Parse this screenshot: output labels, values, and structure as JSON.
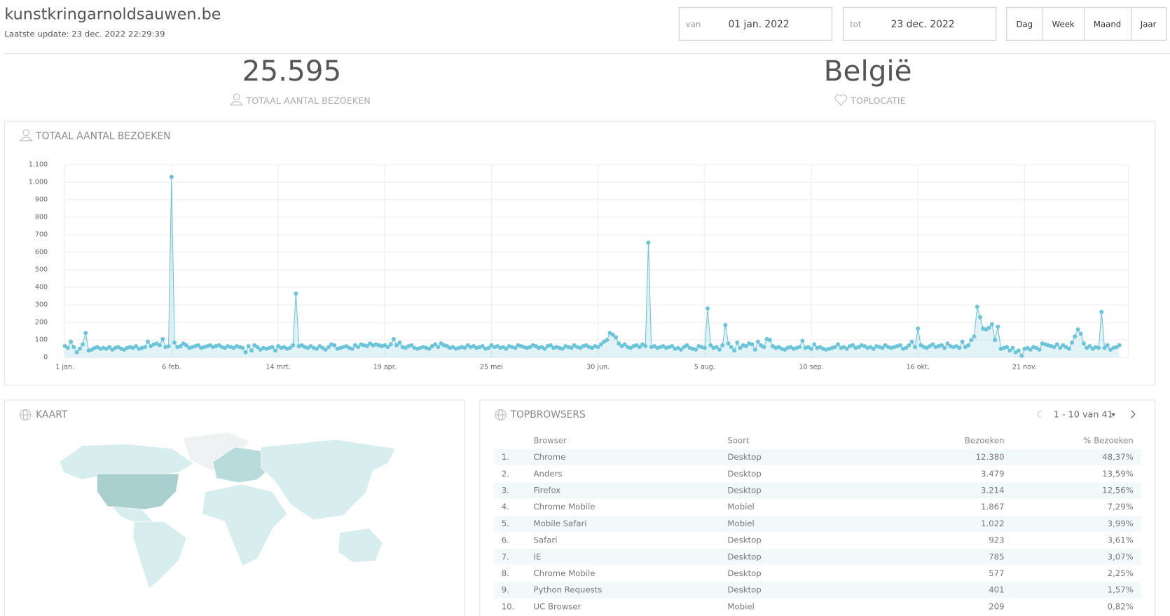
{
  "header": {
    "site": "kunstkringarnoldsauwen.be",
    "updated": "Laatste update: 23 dec. 2022 22:29:39",
    "from_label": "van",
    "from": "01 jan. 2022",
    "to_label": "tot",
    "to": "23 dec. 2022",
    "buttons": [
      "Dag",
      "Week",
      "Maand",
      "Jaar"
    ]
  },
  "stats": [
    {
      "value": "25.595",
      "label": "TOTAAL AANTAL BEZOEKEN"
    },
    {
      "value": "België",
      "label": "TOPLOCATIE"
    }
  ],
  "chart_data": {
    "type": "line",
    "title": "TOTAAL AANTAL BEZOEKEN",
    "color": "#6cc4d8",
    "grid": true,
    "xlim": [
      0,
      359
    ],
    "xticks": [
      {
        "value": 0,
        "label": "1 jan."
      },
      {
        "value": 36,
        "label": "6 feb."
      },
      {
        "value": 72,
        "label": "14 mrt."
      },
      {
        "value": 108,
        "label": "19 apr."
      },
      {
        "value": 144,
        "label": "25 mei"
      },
      {
        "value": 180,
        "label": "30 jun."
      },
      {
        "value": 216,
        "label": "5 aug."
      },
      {
        "value": 252,
        "label": "10 sep."
      },
      {
        "value": 288,
        "label": "16 okt."
      },
      {
        "value": 324,
        "label": "21 nov."
      }
    ],
    "ylim": [
      0,
      1100
    ],
    "yticks": [
      0,
      100,
      200,
      300,
      400,
      500,
      600,
      700,
      800,
      900,
      {
        "value": 1000,
        "label": "1.000"
      },
      {
        "value": 1100,
        "label": "1.100"
      }
    ],
    "values": [
      65,
      55,
      90,
      60,
      30,
      50,
      75,
      140,
      40,
      45,
      55,
      60,
      50,
      55,
      50,
      60,
      45,
      55,
      60,
      50,
      45,
      55,
      60,
      55,
      65,
      50,
      55,
      60,
      90,
      65,
      75,
      80,
      70,
      105,
      60,
      65,
      1030,
      85,
      60,
      65,
      80,
      70,
      55,
      60,
      65,
      70,
      55,
      60,
      65,
      70,
      60,
      65,
      70,
      60,
      55,
      65,
      60,
      55,
      65,
      60,
      55,
      30,
      65,
      40,
      70,
      60,
      45,
      55,
      50,
      55,
      60,
      40,
      65,
      55,
      60,
      50,
      55,
      70,
      365,
      65,
      70,
      60,
      55,
      65,
      55,
      50,
      65,
      55,
      45,
      60,
      75,
      70,
      50,
      55,
      60,
      65,
      55,
      50,
      70,
      60,
      75,
      70,
      65,
      80,
      70,
      75,
      70,
      65,
      70,
      60,
      75,
      105,
      70,
      85,
      60,
      55,
      65,
      70,
      55,
      50,
      55,
      60,
      55,
      50,
      65,
      75,
      60,
      80,
      70,
      65,
      55,
      60,
      50,
      55,
      60,
      55,
      70,
      60,
      65,
      55,
      60,
      65,
      50,
      55,
      70,
      60,
      65,
      55,
      60,
      50,
      65,
      60,
      55,
      70,
      65,
      60,
      55,
      60,
      70,
      65,
      55,
      60,
      50,
      65,
      70,
      55,
      60,
      55,
      50,
      65,
      60,
      55,
      70,
      60,
      55,
      65,
      70,
      60,
      55,
      65,
      60,
      75,
      90,
      100,
      140,
      130,
      115,
      80,
      65,
      75,
      60,
      55,
      65,
      70,
      60,
      75,
      65,
      655,
      60,
      65,
      55,
      60,
      65,
      55,
      60,
      65,
      50,
      55,
      45,
      60,
      70,
      55,
      50,
      45,
      65,
      60,
      55,
      280,
      70,
      55,
      60,
      45,
      70,
      185,
      80,
      60,
      40,
      85,
      55,
      70,
      65,
      80,
      75,
      45,
      90,
      70,
      60,
      105,
      100,
      65,
      55,
      60,
      50,
      45,
      55,
      60,
      50,
      55,
      60,
      95,
      55,
      60,
      50,
      75,
      55,
      60,
      50,
      45,
      50,
      55,
      60,
      75,
      55,
      60,
      50,
      65,
      70,
      55,
      60,
      70,
      65,
      55,
      60,
      50,
      65,
      60,
      55,
      70,
      60,
      55,
      60,
      65,
      70,
      50,
      55,
      70,
      90,
      60,
      165,
      70,
      60,
      55,
      65,
      75,
      60,
      65,
      70,
      55,
      80,
      65,
      60,
      65,
      55,
      90,
      60,
      70,
      100,
      120,
      290,
      230,
      165,
      160,
      170,
      190,
      100,
      175,
      50,
      55,
      60,
      40,
      55,
      30,
      40,
      10,
      50,
      55,
      45,
      60,
      55,
      45,
      80,
      75,
      70,
      65,
      60,
      75,
      55,
      70,
      60,
      50,
      85,
      120,
      160,
      135,
      80,
      55,
      65,
      50,
      60,
      55,
      260,
      55,
      70,
      45,
      55,
      60,
      70
    ]
  },
  "map": {
    "title": "KAART"
  },
  "table": {
    "title": "TOPBROWSERS",
    "pager": "1 - 10 van 41",
    "columns": [
      "Browser",
      "Soort",
      "Bezoeken",
      "% Bezoeken"
    ],
    "rows": [
      [
        "1.",
        "Chrome",
        "Desktop",
        "12.380",
        "48,37%"
      ],
      [
        "2.",
        "Anders",
        "Desktop",
        "3.479",
        "13,59%"
      ],
      [
        "3.",
        "Firefox",
        "Desktop",
        "3.214",
        "12,56%"
      ],
      [
        "4.",
        "Chrome Mobile",
        "Mobiel",
        "1.867",
        "7,29%"
      ],
      [
        "5.",
        "Mobile Safari",
        "Mobiel",
        "1.022",
        "3,99%"
      ],
      [
        "6.",
        "Safari",
        "Desktop",
        "923",
        "3,61%"
      ],
      [
        "7.",
        "IE",
        "Desktop",
        "785",
        "3,07%"
      ],
      [
        "8.",
        "Chrome Mobile",
        "Desktop",
        "577",
        "2,25%"
      ],
      [
        "9.",
        "Python Requests",
        "Desktop",
        "401",
        "1,57%"
      ],
      [
        "10.",
        "UC Browser",
        "Mobiel",
        "209",
        "0,82%"
      ]
    ]
  }
}
